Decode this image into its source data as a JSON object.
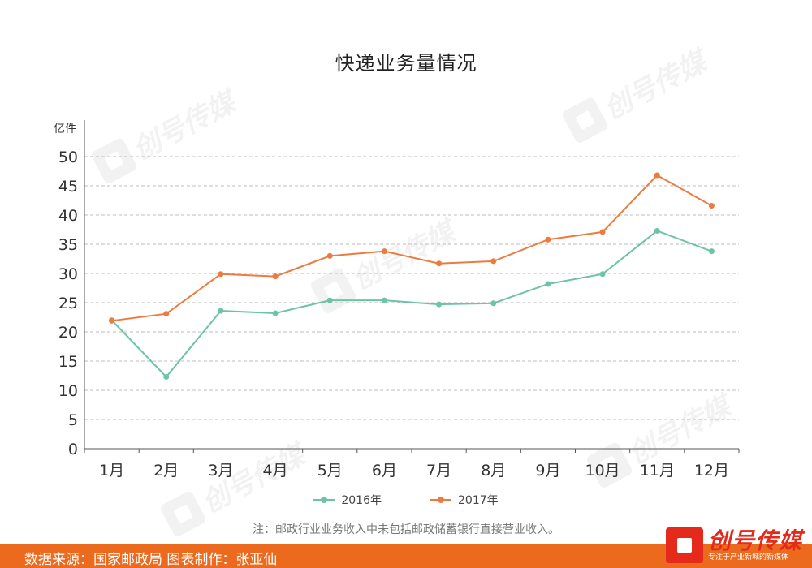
{
  "chart_data": {
    "type": "line",
    "title": "快递业务量情况",
    "ylabel": "亿件",
    "xlabel": "",
    "categories": [
      "1月",
      "2月",
      "3月",
      "4月",
      "5月",
      "6月",
      "7月",
      "8月",
      "9月",
      "10月",
      "11月",
      "12月"
    ],
    "yticks": [
      "0",
      "5",
      "10",
      "15",
      "20",
      "25",
      "30",
      "35",
      "40",
      "45",
      "50"
    ],
    "ylim": [
      0,
      50
    ],
    "grid": true,
    "legend_position": "bottom",
    "series": [
      {
        "name": "2016年",
        "color": "#6dc3a6",
        "values": [
          22,
          12.3,
          23.6,
          23.2,
          25.4,
          25.4,
          24.7,
          24.9,
          28.2,
          29.9,
          37.3,
          33.8
        ]
      },
      {
        "name": "2017年",
        "color": "#ec7b3e",
        "values": [
          21.9,
          23.1,
          29.9,
          29.5,
          33.0,
          33.8,
          31.7,
          32.1,
          35.8,
          37.1,
          46.8,
          41.6
        ]
      }
    ]
  },
  "note": "注：邮政行业业务收入中未包括邮政储蓄银行直接营业收入。",
  "footer": {
    "source": "数据来源：国家邮政局  图表制作：张亚仙",
    "brand_name": "创号传媒",
    "brand_sub": "专注于产业新城的新媒体"
  },
  "watermark": {
    "text": "创号传媒",
    "icon": "brand-cube-icon"
  }
}
